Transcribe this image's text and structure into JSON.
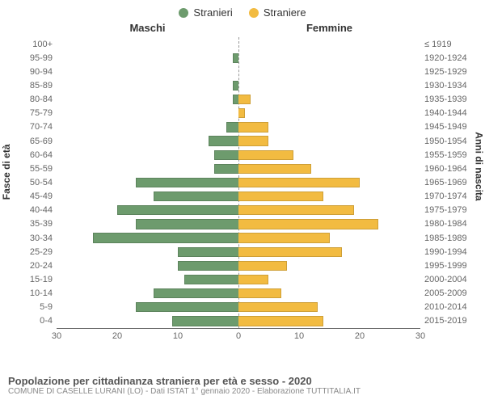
{
  "legend": {
    "male": {
      "label": "Stranieri",
      "color": "#6d9b6d"
    },
    "female": {
      "label": "Straniere",
      "color": "#f2bb41"
    }
  },
  "headers": {
    "male": "Maschi",
    "female": "Femmine"
  },
  "axis_labels": {
    "left": "Fasce di età",
    "right": "Anni di nascita"
  },
  "x_axis": {
    "max": 30,
    "ticks": [
      30,
      20,
      10,
      0,
      10,
      20,
      30
    ]
  },
  "plot": {
    "grid_color": "#999",
    "axis_color": "#666",
    "text_color": "#666",
    "background": "#ffffff"
  },
  "rows": [
    {
      "age": "100+",
      "birth": "≤ 1919",
      "male": 0,
      "female": 0
    },
    {
      "age": "95-99",
      "birth": "1920-1924",
      "male": 1,
      "female": 0
    },
    {
      "age": "90-94",
      "birth": "1925-1929",
      "male": 0,
      "female": 0
    },
    {
      "age": "85-89",
      "birth": "1930-1934",
      "male": 1,
      "female": 0
    },
    {
      "age": "80-84",
      "birth": "1935-1939",
      "male": 1,
      "female": 2
    },
    {
      "age": "75-79",
      "birth": "1940-1944",
      "male": 0,
      "female": 1
    },
    {
      "age": "70-74",
      "birth": "1945-1949",
      "male": 2,
      "female": 5
    },
    {
      "age": "65-69",
      "birth": "1950-1954",
      "male": 5,
      "female": 5
    },
    {
      "age": "60-64",
      "birth": "1955-1959",
      "male": 4,
      "female": 9
    },
    {
      "age": "55-59",
      "birth": "1960-1964",
      "male": 4,
      "female": 12
    },
    {
      "age": "50-54",
      "birth": "1965-1969",
      "male": 17,
      "female": 20
    },
    {
      "age": "45-49",
      "birth": "1970-1974",
      "male": 14,
      "female": 14
    },
    {
      "age": "40-44",
      "birth": "1975-1979",
      "male": 20,
      "female": 19
    },
    {
      "age": "35-39",
      "birth": "1980-1984",
      "male": 17,
      "female": 23
    },
    {
      "age": "30-34",
      "birth": "1985-1989",
      "male": 24,
      "female": 15
    },
    {
      "age": "25-29",
      "birth": "1990-1994",
      "male": 10,
      "female": 17
    },
    {
      "age": "20-24",
      "birth": "1995-1999",
      "male": 10,
      "female": 8
    },
    {
      "age": "15-19",
      "birth": "2000-2004",
      "male": 9,
      "female": 5
    },
    {
      "age": "10-14",
      "birth": "2005-2009",
      "male": 14,
      "female": 7
    },
    {
      "age": "5-9",
      "birth": "2010-2014",
      "male": 17,
      "female": 13
    },
    {
      "age": "0-4",
      "birth": "2015-2019",
      "male": 11,
      "female": 14
    }
  ],
  "footer": {
    "title": "Popolazione per cittadinanza straniera per età e sesso - 2020",
    "sub": "COMUNE DI CASELLE LURANI (LO) - Dati ISTAT 1° gennaio 2020 - Elaborazione TUTTITALIA.IT"
  }
}
